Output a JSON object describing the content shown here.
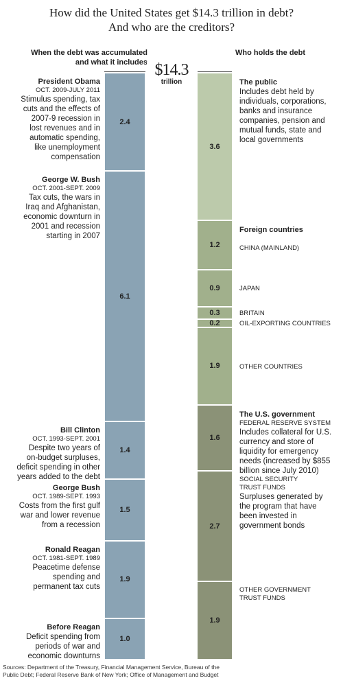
{
  "title_line1": "How did the United States get $14.3 trillion in debt?",
  "title_line2": "And who are the creditors?",
  "left_header_line1": "When the debt was accumulated",
  "left_header_line2": "and what it includes",
  "right_header": "Who holds the debt",
  "total": {
    "value": "$14.3",
    "unit": "trillion"
  },
  "source_line1": "Sources: Department of the Treasury, Financial Management Service, Bureau of the",
  "source_line2": "Public Debt; Federal Reserve Bank of New York; Office of Management and Budget",
  "colors": {
    "left_bar": "#8aa3b4",
    "public": "#bccaab",
    "foreign": "#a1b08c",
    "government": "#8b9277"
  },
  "chart_data": [
    {
      "type": "bar",
      "title": "When the debt was accumulated and what it includes",
      "total": 14.3,
      "categories": [
        "President Obama",
        "George W. Bush",
        "Bill Clinton",
        "George Bush",
        "Ronald Reagan",
        "Before Reagan"
      ],
      "values": [
        2.4,
        6.1,
        1.4,
        1.5,
        1.9,
        1.0
      ],
      "value_labels": [
        "2.4",
        "6.1",
        "1.4",
        "1.5",
        "1.9",
        "1.0"
      ],
      "dates": [
        "OCT. 2009-JULY 2011",
        "OCT. 2001-SEPT. 2009",
        "OCT. 1993-SEPT. 2001",
        "OCT. 1989-SEPT. 1993",
        "OCT. 1981-SEPT. 1989",
        ""
      ],
      "descriptions": [
        [
          "Stimulus spending, tax",
          "cuts and the effects of",
          "2007-9 recession in",
          "lost revenues and in",
          "automatic spending,",
          "like unemployment",
          "compensation"
        ],
        [
          "Tax cuts, the wars in",
          "Iraq and Afghanistan,",
          "economic downturn in",
          "2001 and recession",
          "starting in 2007"
        ],
        [
          "Despite two years of",
          "on-budget surpluses,",
          "deficit spending in other",
          "years added to the debt"
        ],
        [
          "Costs from the first gulf",
          "war and lower revenue",
          "from a recession"
        ],
        [
          "Peacetime defense",
          "spending and",
          "permanent tax cuts"
        ],
        [
          "Deficit spending from",
          "periods of war and",
          "economic downturns"
        ]
      ]
    },
    {
      "type": "bar",
      "title": "Who holds the debt",
      "total": 14.3,
      "categories": [
        "The public",
        "CHINA (MAINLAND)",
        "JAPAN",
        "BRITAIN",
        "OIL-EXPORTING COUNTRIES",
        "OTHER COUNTRIES",
        "FEDERAL RESERVE SYSTEM",
        "SOCIAL SECURITY TRUST FUNDS",
        "OTHER GOVERNMENT TRUST FUNDS"
      ],
      "groups": [
        "The public",
        "Foreign countries",
        "Foreign countries",
        "Foreign countries",
        "Foreign countries",
        "Foreign countries",
        "The U.S. government",
        "The U.S. government",
        "The U.S. government"
      ],
      "values": [
        3.6,
        1.2,
        0.9,
        0.3,
        0.2,
        1.9,
        1.6,
        2.7,
        1.9
      ],
      "value_labels": [
        "3.6",
        "1.2",
        "0.9",
        "0.3",
        "0.2",
        "1.9",
        "1.6",
        "2.7",
        "1.9"
      ],
      "group_headers": [
        "The public",
        "Foreign countries",
        "The U.S. government"
      ],
      "sublabel_lines": [
        [],
        [
          "CHINA (MAINLAND)"
        ],
        [
          "JAPAN"
        ],
        [
          "BRITAIN"
        ],
        [
          "OIL-EXPORTING COUNTRIES"
        ],
        [
          "OTHER COUNTRIES"
        ],
        [
          "FEDERAL RESERVE SYSTEM"
        ],
        [
          "SOCIAL SECURITY",
          "TRUST FUNDS"
        ],
        [
          "OTHER GOVERNMENT",
          "TRUST FUNDS"
        ]
      ],
      "descriptions": [
        [
          "Includes debt held by",
          "individuals, corporations,",
          "banks and insurance",
          "companies, pension and",
          "mutual funds, state and",
          "local governments"
        ],
        [],
        [],
        [],
        [],
        [],
        [
          "Includes collateral for U.S.",
          "currency and store of",
          "liquidity for emergency",
          "needs (increased by $855",
          "billion since July 2010)"
        ],
        [
          "Surpluses generated by",
          "the program that have",
          "been invested in",
          "government bonds"
        ],
        []
      ]
    }
  ]
}
